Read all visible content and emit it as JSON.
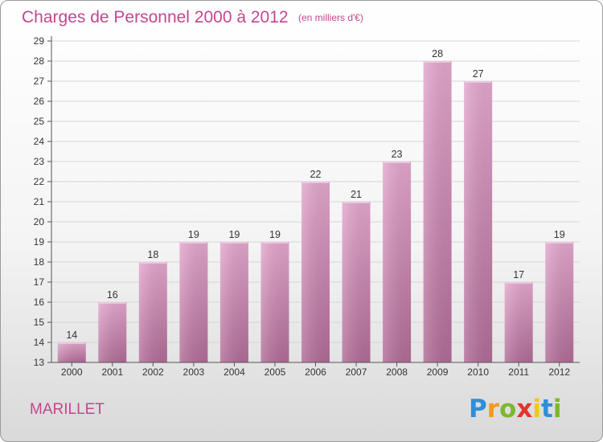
{
  "chart_data": {
    "type": "bar",
    "title": "Charges de Personnel 2000 à 2012",
    "subtitle": "(en milliers d'€)",
    "categories": [
      "2000",
      "2001",
      "2002",
      "2003",
      "2004",
      "2005",
      "2006",
      "2007",
      "2008",
      "2009",
      "2010",
      "2011",
      "2012"
    ],
    "values": [
      14,
      16,
      18,
      19,
      19,
      19,
      22,
      21,
      23,
      28,
      27,
      17,
      19
    ],
    "ylim": [
      13,
      29
    ],
    "yticks": [
      13,
      14,
      15,
      16,
      17,
      18,
      19,
      20,
      21,
      22,
      23,
      24,
      25,
      26,
      27,
      28,
      29
    ],
    "grid": true,
    "legend": "none",
    "bar_color": "#cc7bab"
  },
  "place_label": "MARILLET",
  "brand": {
    "letters": [
      "P",
      "r",
      "o",
      "x",
      "i",
      "t",
      "i"
    ],
    "colors": [
      "#2f8fd8",
      "#f29a1c",
      "#7cb82f",
      "#e2342b",
      "#f2c618",
      "#2f8fd8",
      "#7cb82f"
    ]
  }
}
